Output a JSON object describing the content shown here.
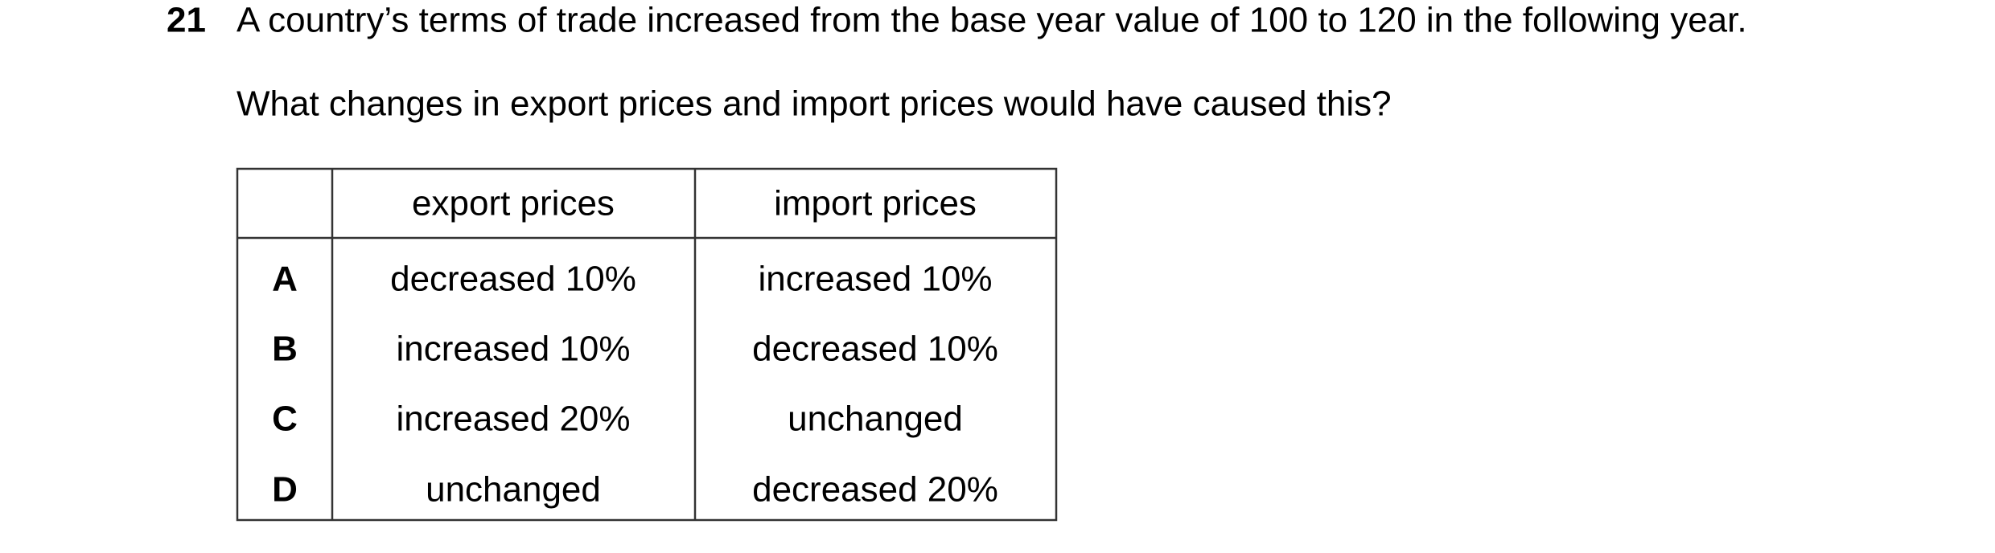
{
  "question": {
    "number": "21",
    "text": "A country’s terms of trade increased from the base year value of 100 to 120 in the following year.",
    "prompt": "What changes in export prices and import prices would have caused this?"
  },
  "table": {
    "headers": [
      "export prices",
      "import prices"
    ],
    "rows": [
      [
        "A",
        "decreased 10%",
        "increased 10%"
      ],
      [
        "B",
        "increased 10%",
        "decreased 10%"
      ],
      [
        "C",
        "increased 20%",
        "unchanged"
      ],
      [
        "D",
        "unchanged",
        "decreased 20%"
      ]
    ]
  }
}
